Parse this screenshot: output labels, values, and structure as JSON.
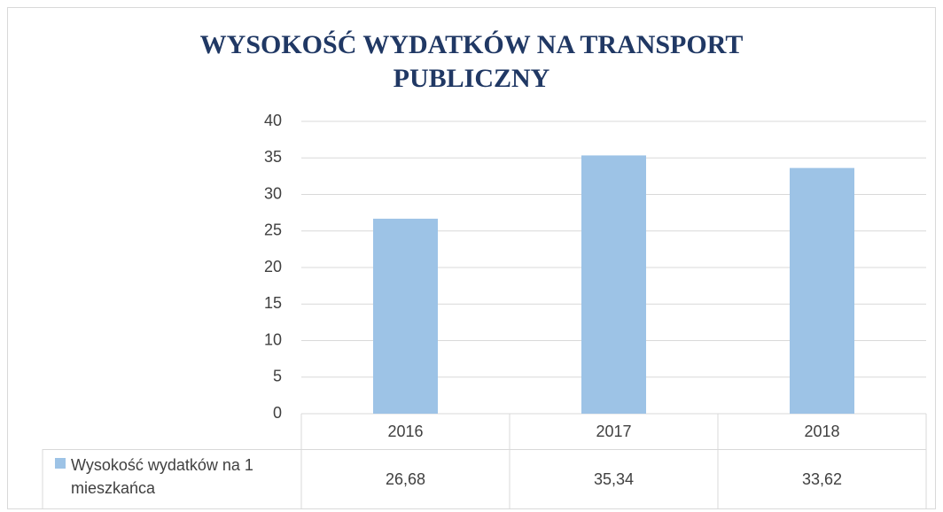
{
  "chart_data": {
    "type": "bar",
    "title": "WYSOKOŚĆ WYDATKÓW NA TRANSPORT PUBLICZNY",
    "categories": [
      "2016",
      "2017",
      "2018"
    ],
    "series": [
      {
        "name": "Wysokość wydatków na 1 mieszkańca",
        "color": "#9dc3e6",
        "values": [
          26.68,
          35.34,
          33.62
        ],
        "value_labels": [
          "26,68",
          "35,34",
          "33,62"
        ]
      }
    ],
    "ylim": [
      0,
      40
    ],
    "yticks": [
      0,
      5,
      10,
      15,
      20,
      25,
      30,
      35,
      40
    ],
    "grid": true,
    "data_table": true
  }
}
